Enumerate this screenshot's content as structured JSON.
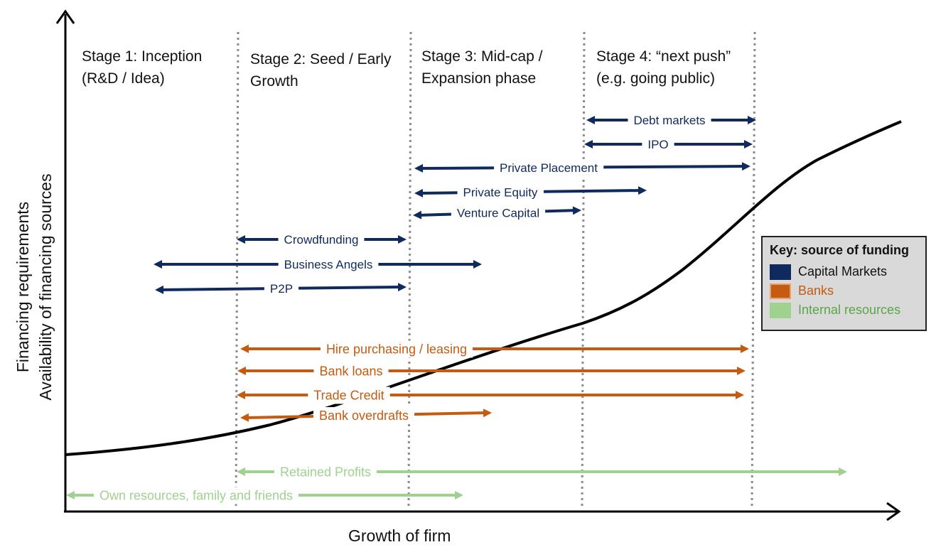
{
  "axes": {
    "y_label": "Financing requirements\nAvailability of financing sources",
    "x_label": "Growth of firm"
  },
  "stages": [
    {
      "label": "Stage 1: Inception\n(R&D / Idea)"
    },
    {
      "label": "Stage 2: Seed / Early\nGrowth"
    },
    {
      "label": "Stage 3: Mid-cap /\nExpansion phase"
    },
    {
      "label": "Stage 4: “next push”\n(e.g. going public)"
    }
  ],
  "colors": {
    "capital_markets": "#0f2a5c",
    "banks": "#c55a11",
    "internal": "#9fd18f",
    "divider": "#8c8c8c",
    "axis": "#000000"
  },
  "financing_sources": [
    {
      "label": "Debt markets",
      "category": "capital_markets"
    },
    {
      "label": "IPO",
      "category": "capital_markets"
    },
    {
      "label": "Private Placement",
      "category": "capital_markets"
    },
    {
      "label": "Private Equity",
      "category": "capital_markets"
    },
    {
      "label": "Venture Capital",
      "category": "capital_markets"
    },
    {
      "label": "Crowdfunding",
      "category": "capital_markets"
    },
    {
      "label": "Business Angels",
      "category": "capital_markets"
    },
    {
      "label": "P2P",
      "category": "capital_markets"
    },
    {
      "label": "Hire purchasing / leasing",
      "category": "banks"
    },
    {
      "label": "Bank loans",
      "category": "banks"
    },
    {
      "label": "Trade Credit",
      "category": "banks"
    },
    {
      "label": "Bank overdrafts",
      "category": "banks"
    },
    {
      "label": "Retained Profits",
      "category": "internal"
    },
    {
      "label": "Own resources, family and friends",
      "category": "internal"
    }
  ],
  "key": {
    "title": "Key: source of funding",
    "items": [
      {
        "label": "Capital Markets",
        "category": "capital_markets"
      },
      {
        "label": "Banks",
        "category": "banks"
      },
      {
        "label": "Internal resources",
        "category": "internal"
      }
    ]
  }
}
